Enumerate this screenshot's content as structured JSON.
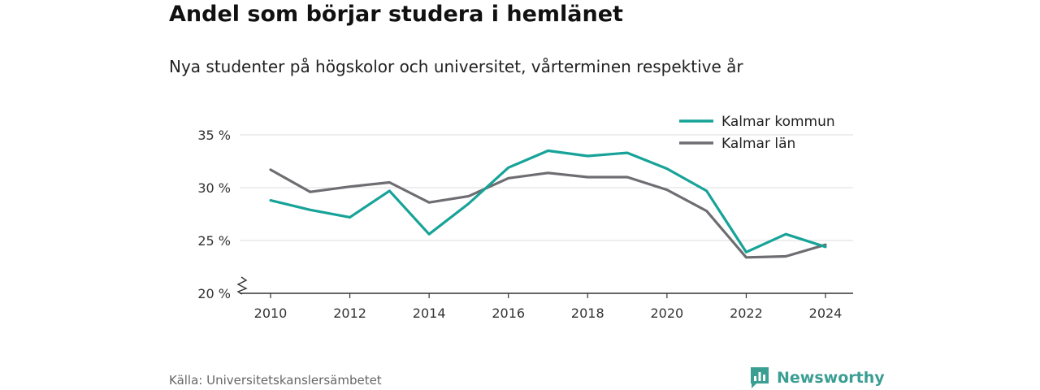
{
  "title": "Andel som börjar studera i hemlänet",
  "subtitle": "Nya studenter på högskolor och universitet, vårterminen respektive år",
  "source": "Källa: Universitetskanslersämbetet",
  "brand": "Newsworthy",
  "colors": {
    "kommun": "#17a398",
    "lan": "#6e6d72",
    "grid": "#dddddd",
    "axis": "#333333",
    "brand": "#3b9e93"
  },
  "chart_data": {
    "type": "line",
    "title": "Andel som börjar studera i hemlänet",
    "subtitle": "Nya studenter på högskolor och universitet, vårterminen respektive år",
    "x": [
      2010,
      2011,
      2012,
      2013,
      2014,
      2015,
      2016,
      2017,
      2018,
      2019,
      2020,
      2021,
      2022,
      2023,
      2024
    ],
    "x_ticks": [
      "2010",
      "2012",
      "2014",
      "2016",
      "2018",
      "2020",
      "2022",
      "2024"
    ],
    "y_ticks": [
      "20 %",
      "25 %",
      "30 %",
      "35 %"
    ],
    "ylim": [
      20,
      35
    ],
    "y_axis_break": true,
    "grid": true,
    "legend_position": "top-right",
    "series": [
      {
        "name": "Kalmar kommun",
        "color": "#17a398",
        "values": [
          28.8,
          27.9,
          27.2,
          29.7,
          25.6,
          28.5,
          31.9,
          33.5,
          33.0,
          33.3,
          31.8,
          29.7,
          23.9,
          25.6,
          24.4
        ]
      },
      {
        "name": "Kalmar län",
        "color": "#6e6d72",
        "values": [
          31.7,
          29.6,
          30.1,
          30.5,
          28.6,
          29.2,
          30.9,
          31.4,
          31.0,
          31.0,
          29.8,
          27.8,
          23.4,
          23.5,
          24.6
        ]
      }
    ]
  }
}
